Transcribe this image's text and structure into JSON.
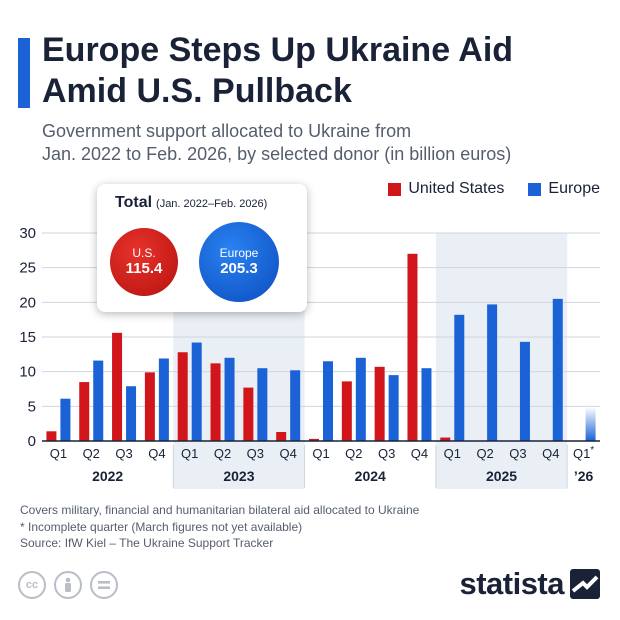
{
  "header": {
    "title_line1": "Europe Steps Up Ukraine Aid",
    "title_line2": "Amid U.S. Pullback",
    "subtitle_line1": "Government support allocated to Ukraine from",
    "subtitle_line2": "Jan. 2022 to Feb. 2026, by selected donor (in billion euros)"
  },
  "legend": [
    {
      "name": "United States",
      "color": "#d0161b"
    },
    {
      "name": "Europe",
      "color": "#1a62d6"
    }
  ],
  "totals": {
    "title": "Total",
    "range": "(Jan. 2022–Feb. 2026)",
    "us_label": "U.S.",
    "us_value": "115.4",
    "eu_label": "Europe",
    "eu_value": "205.3"
  },
  "chart_data": {
    "type": "bar",
    "categories": [
      "Q1",
      "Q2",
      "Q3",
      "Q4",
      "Q1",
      "Q2",
      "Q3",
      "Q4",
      "Q1",
      "Q2",
      "Q3",
      "Q4",
      "Q1",
      "Q2",
      "Q3",
      "Q4",
      "Q1*"
    ],
    "year_groups": [
      {
        "label": "2022",
        "start": 0,
        "end": 3
      },
      {
        "label": "2023",
        "start": 4,
        "end": 7
      },
      {
        "label": "2024",
        "start": 8,
        "end": 11
      },
      {
        "label": "2025",
        "start": 12,
        "end": 15
      },
      {
        "label": "’26",
        "start": 16,
        "end": 16
      }
    ],
    "series": [
      {
        "name": "United States",
        "color": "#d0161b",
        "values": [
          1.4,
          8.5,
          15.6,
          9.9,
          12.8,
          11.2,
          7.7,
          1.3,
          0.3,
          8.6,
          10.7,
          27.0,
          0.5,
          null,
          null,
          null,
          null
        ]
      },
      {
        "name": "Europe",
        "color": "#1a62d6",
        "values": [
          6.1,
          11.6,
          7.9,
          11.9,
          14.2,
          12.0,
          10.5,
          10.2,
          11.5,
          12.0,
          9.5,
          10.5,
          18.2,
          19.7,
          14.3,
          20.5,
          4.9
        ]
      }
    ],
    "ylim": [
      0,
      30
    ],
    "yticks": [
      0,
      5,
      10,
      15,
      20,
      25,
      30
    ],
    "grid": true,
    "legend_position": "top-right"
  },
  "footer": {
    "note1": "Covers military, financial and humanitarian bilateral aid allocated to Ukraine",
    "note2": "* Incomplete quarter (March figures not yet available)",
    "source": "Source: IfW Kiel – The Ukraine Support Tracker",
    "brand": "statista",
    "license_icons": [
      "cc-icon",
      "person-icon",
      "equals-icon"
    ]
  }
}
